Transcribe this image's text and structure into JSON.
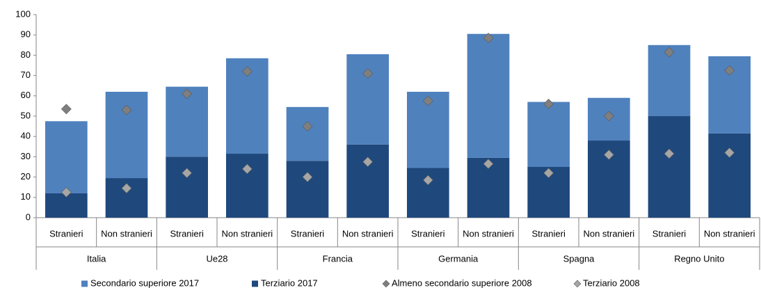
{
  "chart_data": {
    "type": "bar",
    "stacked": true,
    "groups": [
      "Italia",
      "Ue28",
      "Francia",
      "Germania",
      "Spagna",
      "Regno Unito"
    ],
    "categories": [
      "Stranieri",
      "Non stranieri",
      "Stranieri",
      "Non stranieri",
      "Stranieri",
      "Non stranieri",
      "Stranieri",
      "Non stranieri",
      "Stranieri",
      "Non stranieri",
      "Stranieri",
      "Non stranieri"
    ],
    "series": [
      {
        "name": "Secondario superiore 2017",
        "type": "bar",
        "color": "#4f81bd",
        "values": [
          35.5,
          42.5,
          34.5,
          47,
          26.5,
          44.5,
          37.5,
          61,
          32,
          21,
          35,
          38
        ]
      },
      {
        "name": "Terziario 2017",
        "type": "bar",
        "color": "#1f497d",
        "values": [
          12,
          19.5,
          30,
          31.5,
          28,
          36,
          24.5,
          29.5,
          25,
          38,
          50,
          41.5
        ]
      },
      {
        "name": "Almeno secondario superiore 2008",
        "type": "scatter",
        "marker": "diamond",
        "color": "#7f7f7f",
        "values": [
          53.5,
          53,
          61,
          72,
          45,
          71,
          57.5,
          88.5,
          56,
          50,
          81.5,
          72.5
        ]
      },
      {
        "name": "Terziario 2008",
        "type": "scatter",
        "marker": "diamond",
        "color": "#a6a6a6",
        "values": [
          12.5,
          14.5,
          22,
          24,
          20,
          27.5,
          18.5,
          26.5,
          22,
          31,
          31.5,
          32
        ]
      }
    ],
    "ylim": [
      0,
      100
    ],
    "yticks": [
      0,
      10,
      20,
      30,
      40,
      50,
      60,
      70,
      80,
      90,
      100
    ],
    "grid": false,
    "legend": "bottom"
  }
}
